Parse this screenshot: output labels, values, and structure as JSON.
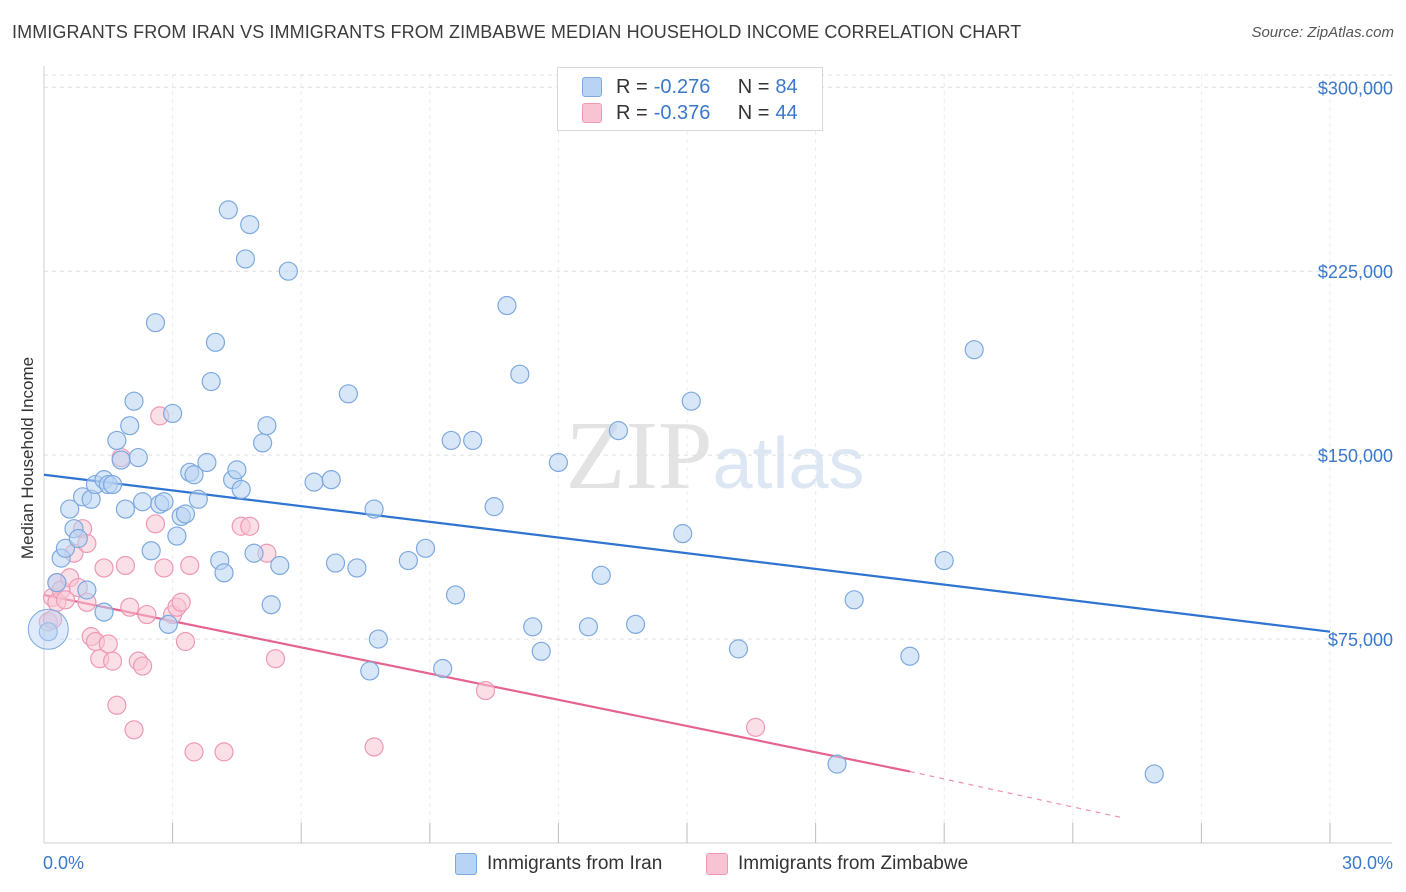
{
  "title": "IMMIGRANTS FROM IRAN VS IMMIGRANTS FROM ZIMBABWE MEDIAN HOUSEHOLD INCOME CORRELATION CHART",
  "source": "Source: ZipAtlas.com",
  "watermark": "ZIPatlas",
  "legend": {
    "rows": [
      {
        "r_label": "R =",
        "r_value": "-0.276",
        "n_label": "N =",
        "n_value": "84"
      },
      {
        "r_label": "R =",
        "r_value": "-0.376",
        "n_label": "N =",
        "n_value": "44"
      }
    ]
  },
  "bottom_legend": [
    "Immigrants from Iran",
    "Immigrants from Zimbabwe"
  ],
  "colors": {
    "iran_fill": "#b8d3f3",
    "iran_stroke": "#7ea9df",
    "iran_line": "#2f74d0",
    "zim_fill": "#f8c4d4",
    "zim_stroke": "#ee99b5",
    "zim_line": "#e5648f",
    "tick_text": "#3a78c9",
    "grid": "#dfdfdf"
  },
  "chart_data": {
    "type": "scatter",
    "title": "IMMIGRANTS FROM IRAN VS IMMIGRANTS FROM ZIMBABWE MEDIAN HOUSEHOLD INCOME CORRELATION CHART",
    "xlabel": "",
    "ylabel": "Median Household Income",
    "xlim": [
      0,
      30
    ],
    "ylim": [
      0,
      305000
    ],
    "x_tick_labels": [
      "0.0%",
      "30.0%"
    ],
    "y_ticks": [
      75000,
      150000,
      225000,
      300000
    ],
    "y_tick_labels": [
      "$75,000",
      "$150,000",
      "$225,000",
      "$300,000"
    ],
    "grid": true,
    "legend_position": "top-center",
    "series": [
      {
        "name": "Immigrants from Iran",
        "r": -0.276,
        "n": 84,
        "trend": {
          "x": [
            0,
            30
          ],
          "y": [
            142000,
            78000
          ]
        },
        "points": [
          [
            0.1,
            78000
          ],
          [
            0.3,
            98000
          ],
          [
            0.4,
            108000
          ],
          [
            0.5,
            112000
          ],
          [
            0.6,
            128000
          ],
          [
            0.7,
            120000
          ],
          [
            0.8,
            116000
          ],
          [
            0.9,
            133000
          ],
          [
            1.0,
            95000
          ],
          [
            1.1,
            132000
          ],
          [
            1.2,
            138000
          ],
          [
            1.4,
            140000
          ],
          [
            1.4,
            86000
          ],
          [
            1.5,
            138000
          ],
          [
            1.6,
            138000
          ],
          [
            1.7,
            156000
          ],
          [
            1.8,
            148000
          ],
          [
            1.9,
            128000
          ],
          [
            2.0,
            162000
          ],
          [
            2.1,
            172000
          ],
          [
            2.2,
            149000
          ],
          [
            2.3,
            131000
          ],
          [
            2.5,
            111000
          ],
          [
            2.6,
            204000
          ],
          [
            2.7,
            130000
          ],
          [
            2.8,
            131000
          ],
          [
            2.9,
            81000
          ],
          [
            3.0,
            167000
          ],
          [
            3.1,
            117000
          ],
          [
            3.2,
            125000
          ],
          [
            3.3,
            126000
          ],
          [
            3.4,
            143000
          ],
          [
            3.5,
            142000
          ],
          [
            3.6,
            132000
          ],
          [
            3.8,
            147000
          ],
          [
            3.9,
            180000
          ],
          [
            4.0,
            196000
          ],
          [
            4.1,
            107000
          ],
          [
            4.2,
            102000
          ],
          [
            4.3,
            250000
          ],
          [
            4.4,
            140000
          ],
          [
            4.5,
            144000
          ],
          [
            4.6,
            136000
          ],
          [
            4.7,
            230000
          ],
          [
            4.8,
            244000
          ],
          [
            4.9,
            110000
          ],
          [
            5.1,
            155000
          ],
          [
            5.2,
            162000
          ],
          [
            5.3,
            89000
          ],
          [
            5.5,
            105000
          ],
          [
            5.7,
            225000
          ],
          [
            6.3,
            139000
          ],
          [
            6.8,
            106000
          ],
          [
            6.7,
            140000
          ],
          [
            7.1,
            175000
          ],
          [
            7.3,
            104000
          ],
          [
            7.6,
            62000
          ],
          [
            7.7,
            128000
          ],
          [
            7.8,
            75000
          ],
          [
            8.5,
            107000
          ],
          [
            8.9,
            112000
          ],
          [
            9.3,
            63000
          ],
          [
            9.5,
            156000
          ],
          [
            9.6,
            93000
          ],
          [
            10.0,
            156000
          ],
          [
            10.5,
            129000
          ],
          [
            10.8,
            211000
          ],
          [
            11.1,
            183000
          ],
          [
            11.4,
            80000
          ],
          [
            11.6,
            70000
          ],
          [
            12.0,
            147000
          ],
          [
            12.7,
            80000
          ],
          [
            13.0,
            101000
          ],
          [
            13.4,
            160000
          ],
          [
            13.8,
            81000
          ],
          [
            14.9,
            118000
          ],
          [
            15.1,
            172000
          ],
          [
            16.2,
            71000
          ],
          [
            18.5,
            24000
          ],
          [
            18.9,
            91000
          ],
          [
            20.2,
            68000
          ],
          [
            21.0,
            107000
          ],
          [
            21.7,
            193000
          ],
          [
            25.9,
            20000
          ]
        ]
      },
      {
        "name": "Immigrants from Zimbabwe",
        "r": -0.376,
        "n": 44,
        "trend": {
          "x": [
            0,
            20.2
          ],
          "y": [
            93000,
            21000
          ]
        },
        "trend_dashed": {
          "x": [
            20.2,
            25.2
          ],
          "y": [
            21000,
            2000
          ]
        },
        "points": [
          [
            0.1,
            82000
          ],
          [
            0.2,
            92000
          ],
          [
            0.3,
            90000
          ],
          [
            0.3,
            98000
          ],
          [
            0.4,
            95000
          ],
          [
            0.5,
            91000
          ],
          [
            0.6,
            100000
          ],
          [
            0.7,
            110000
          ],
          [
            0.8,
            96000
          ],
          [
            0.9,
            120000
          ],
          [
            1.0,
            114000
          ],
          [
            1.0,
            90000
          ],
          [
            1.1,
            76000
          ],
          [
            1.2,
            74000
          ],
          [
            1.3,
            67000
          ],
          [
            1.4,
            104000
          ],
          [
            1.5,
            73000
          ],
          [
            1.6,
            66000
          ],
          [
            1.7,
            48000
          ],
          [
            1.8,
            149000
          ],
          [
            1.9,
            105000
          ],
          [
            2.0,
            88000
          ],
          [
            2.1,
            38000
          ],
          [
            2.2,
            66000
          ],
          [
            2.3,
            64000
          ],
          [
            2.4,
            85000
          ],
          [
            2.6,
            122000
          ],
          [
            2.7,
            166000
          ],
          [
            2.8,
            104000
          ],
          [
            3.0,
            85000
          ],
          [
            3.1,
            88000
          ],
          [
            3.2,
            90000
          ],
          [
            3.3,
            74000
          ],
          [
            3.4,
            105000
          ],
          [
            3.5,
            29000
          ],
          [
            4.2,
            29000
          ],
          [
            4.6,
            121000
          ],
          [
            4.8,
            121000
          ],
          [
            5.2,
            110000
          ],
          [
            5.4,
            67000
          ],
          [
            7.7,
            31000
          ],
          [
            10.3,
            54000
          ],
          [
            16.6,
            39000
          ],
          [
            0.2,
            83000
          ]
        ]
      }
    ]
  }
}
